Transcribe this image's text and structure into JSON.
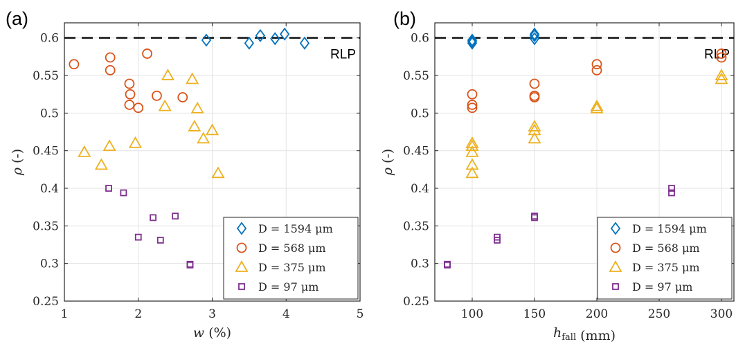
{
  "chart_data": [
    {
      "type": "scatter",
      "panel_label": "(a)",
      "xlabel": "w (%)",
      "ylabel": "ρ (-)",
      "xlim": [
        1,
        5
      ],
      "ylim": [
        0.25,
        0.62
      ],
      "xticks": [
        "1",
        "2",
        "3",
        "4",
        "5"
      ],
      "yticks": [
        "0.25",
        "0.3",
        "0.35",
        "0.4",
        "0.45",
        "0.5",
        "0.55",
        "0.6"
      ],
      "grid": true,
      "legend_position": "bottom-right",
      "reference_line": {
        "y": 0.6,
        "label": "RLP",
        "style": "dashed",
        "color": "#000000"
      },
      "series": [
        {
          "name": "D = 1594 μm",
          "marker": "diamond",
          "color": "#0072BD",
          "points": [
            [
              2.92,
              0.597
            ],
            [
              3.5,
              0.593
            ],
            [
              3.65,
              0.603
            ],
            [
              3.85,
              0.599
            ],
            [
              3.98,
              0.605
            ],
            [
              4.25,
              0.593
            ]
          ]
        },
        {
          "name": "D = 568 μm",
          "marker": "circle",
          "color": "#D95319",
          "points": [
            [
              1.13,
              0.565
            ],
            [
              1.62,
              0.574
            ],
            [
              1.62,
              0.557
            ],
            [
              1.88,
              0.539
            ],
            [
              1.89,
              0.525
            ],
            [
              1.88,
              0.511
            ],
            [
              2.0,
              0.507
            ],
            [
              2.12,
              0.579
            ],
            [
              2.25,
              0.523
            ],
            [
              2.6,
              0.521
            ]
          ]
        },
        {
          "name": "D = 375 μm",
          "marker": "triangle",
          "color": "#EDB120",
          "points": [
            [
              1.27,
              0.448
            ],
            [
              1.5,
              0.431
            ],
            [
              1.61,
              0.456
            ],
            [
              1.96,
              0.46
            ],
            [
              2.36,
              0.509
            ],
            [
              2.4,
              0.55
            ],
            [
              2.73,
              0.545
            ],
            [
              2.76,
              0.482
            ],
            [
              2.8,
              0.506
            ],
            [
              2.88,
              0.466
            ],
            [
              3.0,
              0.477
            ],
            [
              3.08,
              0.42
            ]
          ]
        },
        {
          "name": "D = 97 μm",
          "marker": "square",
          "color": "#7E2F8E",
          "points": [
            [
              1.6,
              0.4
            ],
            [
              1.8,
              0.394
            ],
            [
              2.0,
              0.335
            ],
            [
              2.2,
              0.361
            ],
            [
              2.3,
              0.331
            ],
            [
              2.5,
              0.363
            ],
            [
              2.7,
              0.299
            ],
            [
              2.7,
              0.298
            ]
          ]
        }
      ]
    },
    {
      "type": "scatter",
      "panel_label": "(b)",
      "xlabel": "h_fall (mm)",
      "ylabel": "ρ (-)",
      "xlim": [
        70,
        310
      ],
      "ylim": [
        0.25,
        0.62
      ],
      "xticks": [
        "100",
        "150",
        "200",
        "250",
        "300"
      ],
      "yticks": [
        "0.25",
        "0.3",
        "0.35",
        "0.4",
        "0.45",
        "0.5",
        "0.55",
        "0.6"
      ],
      "grid": true,
      "legend_position": "bottom-right",
      "reference_line": {
        "y": 0.6,
        "label": "RLP",
        "style": "dashed",
        "color": "#000000"
      },
      "series": [
        {
          "name": "D = 1594 μm",
          "marker": "diamond",
          "color": "#0072BD",
          "points": [
            [
              100,
              0.597
            ],
            [
              100,
              0.595
            ],
            [
              100,
              0.593
            ],
            [
              150,
              0.605
            ],
            [
              150,
              0.603
            ],
            [
              150,
              0.599
            ]
          ]
        },
        {
          "name": "D = 568 μm",
          "marker": "circle",
          "color": "#D95319",
          "points": [
            [
              100,
              0.525
            ],
            [
              100,
              0.511
            ],
            [
              100,
              0.507
            ],
            [
              150,
              0.539
            ],
            [
              150,
              0.523
            ],
            [
              150,
              0.521
            ],
            [
              200,
              0.565
            ],
            [
              200,
              0.557
            ],
            [
              300,
              0.579
            ],
            [
              300,
              0.574
            ]
          ]
        },
        {
          "name": "D = 375 μm",
          "marker": "triangle",
          "color": "#EDB120",
          "points": [
            [
              100,
              0.46
            ],
            [
              100,
              0.456
            ],
            [
              100,
              0.448
            ],
            [
              100,
              0.431
            ],
            [
              100,
              0.42
            ],
            [
              150,
              0.482
            ],
            [
              150,
              0.477
            ],
            [
              150,
              0.466
            ],
            [
              200,
              0.509
            ],
            [
              200,
              0.506
            ],
            [
              300,
              0.55
            ],
            [
              300,
              0.545
            ]
          ]
        },
        {
          "name": "D = 97 μm",
          "marker": "square",
          "color": "#7E2F8E",
          "points": [
            [
              80,
              0.299
            ],
            [
              80,
              0.298
            ],
            [
              120,
              0.335
            ],
            [
              120,
              0.331
            ],
            [
              150,
              0.363
            ],
            [
              150,
              0.361
            ],
            [
              260,
              0.4
            ],
            [
              260,
              0.394
            ]
          ]
        }
      ]
    }
  ]
}
